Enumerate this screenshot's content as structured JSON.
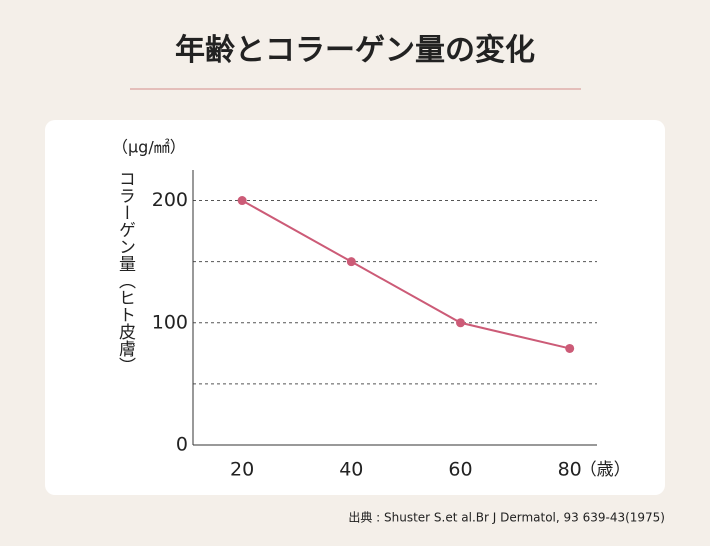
{
  "chart_data": {
    "type": "line",
    "title": "年齢とコラーゲン量の変化",
    "unit": "（μg/㎟）",
    "y_label": "コラーゲン量（ヒト皮膚）",
    "x_unit": "（歳）",
    "source": "出典 : Shuster S.et al.Br J Dermatol, 93 639-43(1975)",
    "x": [
      20,
      40,
      60,
      80
    ],
    "series": [
      {
        "name": "コラーゲン量",
        "color": "#cc5b77",
        "values": [
          200,
          150,
          100,
          79
        ]
      }
    ],
    "xlim": [
      11,
      85
    ],
    "ylim": [
      0,
      225
    ],
    "xticks": [
      20,
      40,
      60,
      80
    ],
    "yticks": [
      0,
      100,
      200
    ],
    "grid_lines": [
      50,
      100,
      150,
      200
    ],
    "grid": true
  }
}
